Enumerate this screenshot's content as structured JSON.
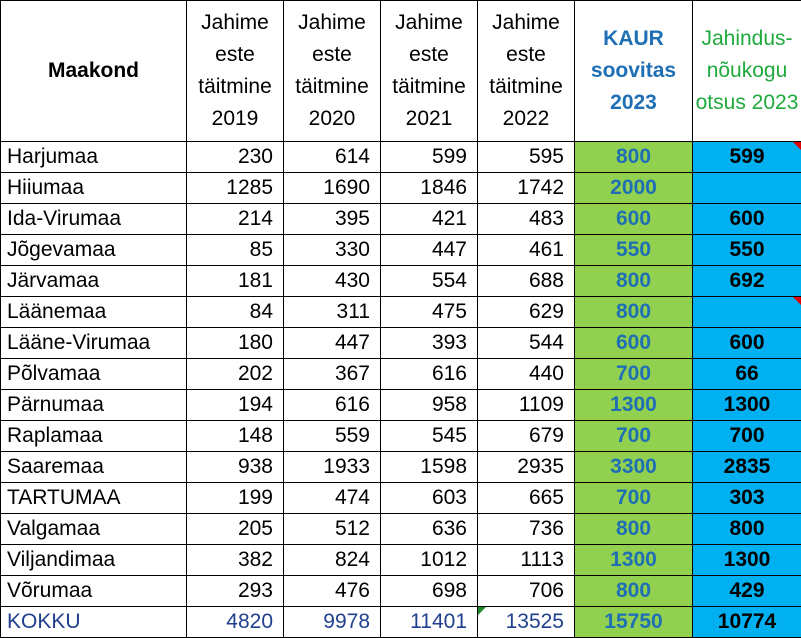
{
  "header": {
    "county": "Maakond",
    "y2019": "Jahime este täitmine 2019",
    "y2020": "Jahime este täitmine 2020",
    "y2021": "Jahime este täitmine 2021",
    "y2022": "Jahime este täitmine 2022",
    "kaur": "KAUR soovitas 2023",
    "council": "Jahindus-nõukogu otsus 2023"
  },
  "rows": [
    {
      "county": "Harjumaa",
      "y2019": "230",
      "y2020": "614",
      "y2021": "599",
      "y2022": "595",
      "kaur": "800",
      "council": "599",
      "council_flag": true
    },
    {
      "county": "Hiiumaa",
      "y2019": "1285",
      "y2020": "1690",
      "y2021": "1846",
      "y2022": "1742",
      "kaur": "2000",
      "council": ""
    },
    {
      "county": "Ida-Virumaa",
      "y2019": "214",
      "y2020": "395",
      "y2021": "421",
      "y2022": "483",
      "kaur": "600",
      "council": "600"
    },
    {
      "county": "Jõgevamaa",
      "y2019": "85",
      "y2020": "330",
      "y2021": "447",
      "y2022": "461",
      "kaur": "550",
      "council": "550"
    },
    {
      "county": "Järvamaa",
      "y2019": "181",
      "y2020": "430",
      "y2021": "554",
      "y2022": "688",
      "kaur": "800",
      "council": "692"
    },
    {
      "county": "Läänemaa",
      "y2019": "84",
      "y2020": "311",
      "y2021": "475",
      "y2022": "629",
      "kaur": "800",
      "council": "",
      "council_flag": true
    },
    {
      "county": "Lääne-Virumaa",
      "y2019": "180",
      "y2020": "447",
      "y2021": "393",
      "y2022": "544",
      "kaur": "600",
      "council": "600"
    },
    {
      "county": "Põlvamaa",
      "y2019": "202",
      "y2020": "367",
      "y2021": "616",
      "y2022": "440",
      "kaur": "700",
      "council": "66"
    },
    {
      "county": "Pärnumaa",
      "y2019": "194",
      "y2020": "616",
      "y2021": "958",
      "y2022": "1109",
      "kaur": "1300",
      "council": "1300"
    },
    {
      "county": "Raplamaa",
      "y2019": "148",
      "y2020": "559",
      "y2021": "545",
      "y2022": "679",
      "kaur": "700",
      "council": "700"
    },
    {
      "county": "Saaremaa",
      "y2019": "938",
      "y2020": "1933",
      "y2021": "1598",
      "y2022": "2935",
      "kaur": "3300",
      "council": "2835"
    },
    {
      "county": "TARTUMAA",
      "y2019": "199",
      "y2020": "474",
      "y2021": "603",
      "y2022": "665",
      "kaur": "700",
      "council": "303"
    },
    {
      "county": "Valgamaa",
      "y2019": "205",
      "y2020": "512",
      "y2021": "636",
      "y2022": "736",
      "kaur": "800",
      "council": "800"
    },
    {
      "county": "Viljandimaa",
      "y2019": "382",
      "y2020": "824",
      "y2021": "1012",
      "y2022": "1113",
      "kaur": "1300",
      "council": "1300"
    },
    {
      "county": "Võrumaa",
      "y2019": "293",
      "y2020": "476",
      "y2021": "698",
      "y2022": "706",
      "kaur": "800",
      "council": "429"
    }
  ],
  "total": {
    "county": "KOKKU",
    "y2019": "4820",
    "y2020": "9978",
    "y2021": "11401",
    "y2022": "13525",
    "kaur": "15750",
    "council": "10774"
  },
  "colors": {
    "kaur_fill": "#92d050",
    "kaur_text": "#1f6fb5",
    "council_fill": "#00b0f0",
    "council_header_text": "#1faa3d",
    "total_text": "#1f3f8f",
    "comment_flag": "#e00000",
    "warning_flag": "#1a8a2a"
  }
}
